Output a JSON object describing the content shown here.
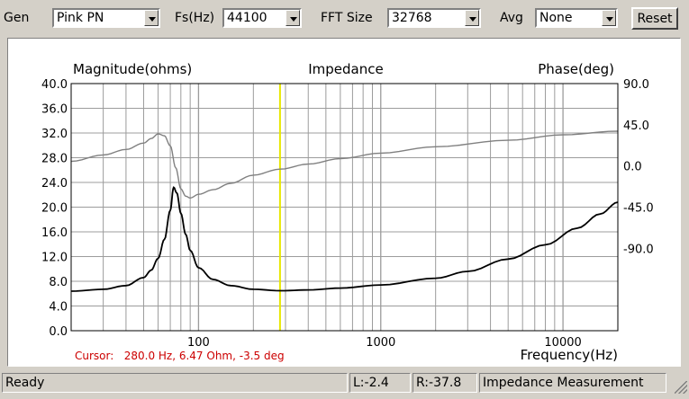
{
  "toolbar": {
    "gen_label": "Gen",
    "gen_value": "Pink PN",
    "fs_label": "Fs(Hz)",
    "fs_value": "44100",
    "fft_label": "FFT Size",
    "fft_value": "32768",
    "avg_label": "Avg",
    "avg_value": "None",
    "reset_label": "Reset"
  },
  "plot": {
    "title": "Impedance",
    "left_axis_label": "Magnitude(ohms)",
    "right_axis_label": "Phase(deg)",
    "x_axis_label": "Frequency(Hz)",
    "cursor_text": "Cursor:   280.0 Hz, 6.47 Ohm, -3.5 deg"
  },
  "chart_data": {
    "type": "line",
    "title": "Impedance",
    "xlabel": "Frequency(Hz)",
    "ylabel": "Magnitude(ohms)",
    "y2label": "Phase(deg)",
    "xscale": "log",
    "xlim": [
      20,
      20000
    ],
    "ylim": [
      0,
      40
    ],
    "y2lim": [
      -180,
      90
    ],
    "x_tick_labels": [
      "100",
      "1000",
      "10000"
    ],
    "y_tick_labels": [
      "40.0",
      "36.0",
      "32.0",
      "28.0",
      "24.0",
      "20.0",
      "16.0",
      "12.0",
      "8.0",
      "4.0",
      "0.0"
    ],
    "y2_tick_labels": [
      "90.0",
      "45.0",
      "0.0",
      "-45.0",
      "-90.0"
    ],
    "grid": true,
    "cursor_x": 280,
    "colors": {
      "magnitude": "#000000",
      "phase": "#808080",
      "cursor": "#e8e800",
      "cursor_text": "#cc0000",
      "grid": "#9c9c9c"
    },
    "series": [
      {
        "name": "Magnitude",
        "axis": "left",
        "x": [
          20,
          30,
          40,
          50,
          55,
          60,
          65,
          70,
          73,
          76,
          80,
          85,
          90,
          100,
          120,
          150,
          200,
          280,
          400,
          600,
          1000,
          2000,
          3000,
          5000,
          8000,
          12000,
          16000,
          20000
        ],
        "values": [
          6.4,
          6.7,
          7.3,
          8.6,
          9.8,
          11.7,
          14.8,
          19.5,
          23.2,
          22.3,
          19.0,
          15.6,
          13.0,
          10.2,
          8.3,
          7.3,
          6.7,
          6.47,
          6.6,
          6.9,
          7.4,
          8.5,
          9.6,
          11.6,
          13.9,
          16.6,
          18.9,
          20.8
        ]
      },
      {
        "name": "Phase",
        "axis": "right",
        "x": [
          20,
          30,
          40,
          50,
          55,
          60,
          65,
          70,
          75,
          80,
          85,
          90,
          100,
          120,
          150,
          200,
          280,
          400,
          600,
          1000,
          2000,
          5000,
          10000,
          20000
        ],
        "values": [
          5,
          12,
          18,
          25,
          30,
          35,
          33,
          22,
          -2,
          -25,
          -33,
          -35,
          -31,
          -26,
          -19,
          -10,
          -3.5,
          2,
          8,
          14,
          21,
          28,
          34,
          38
        ]
      }
    ]
  },
  "status": {
    "ready": "Ready",
    "left_level": "L:-2.4",
    "right_level": "R:-37.8",
    "mode": "Impedance Measurement"
  }
}
